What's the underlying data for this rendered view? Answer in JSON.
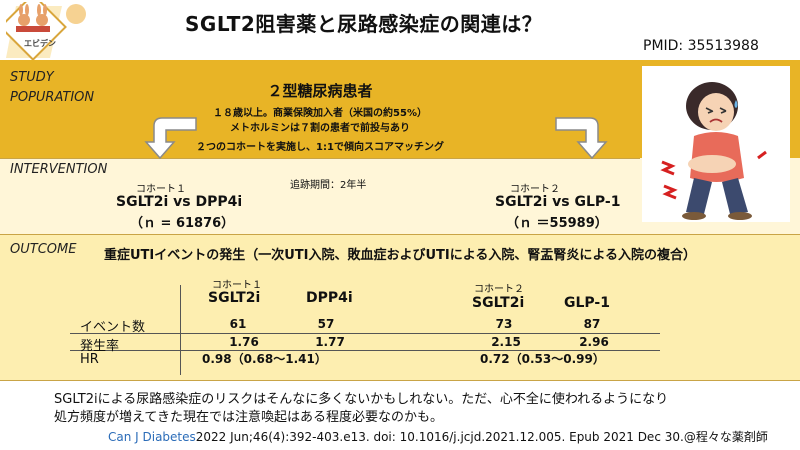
{
  "logo": {
    "text": "エビデン"
  },
  "header": {
    "title": "SGLT2阻害薬と尿路感染症の関連は？",
    "pmid": "PMID: 35513988"
  },
  "population": {
    "label_line1": "STUDY",
    "label_line2": "POPURATION",
    "title": "２型糖尿病患者",
    "line1": "１８歳以上。商業保険加入者（米国の約55%）",
    "line2": "メトホルミンは７割の患者で前投与あり",
    "line3": "２つのコホートを実施し、1:1で傾向スコアマッチング"
  },
  "intervention": {
    "label": "INTERVENTION",
    "followup": "追跡期間：2年半",
    "cohort1": {
      "label": "コホート１",
      "name": "SGLT2i vs DPP4i",
      "n": "（ｎ = 61876）"
    },
    "cohort2": {
      "label": "コホート２",
      "name": "SGLT2i vs GLP-1",
      "n": "（ｎ ＝55989）"
    }
  },
  "outcome": {
    "label": "OUTCOME",
    "title": "重症UTIイベントの発生（一次UTI入院、敗血症およびUTIによる入院、腎盂腎炎による入院の複合）",
    "cohort1_label": "コホート１",
    "cohort2_label": "コホート２",
    "headers": [
      "SGLT2i",
      "DPP4i",
      "SGLT2i",
      "GLP-1"
    ],
    "rows": [
      {
        "label": "イベント数",
        "values": [
          "61",
          "57",
          "73",
          "87"
        ]
      },
      {
        "label": "発生率",
        "values": [
          "1.76",
          "1.77",
          "2.15",
          "2.96"
        ]
      },
      {
        "label": "HR",
        "hr1": "0.98（0.68〜1.41）",
        "hr2": "0.72（0.53〜0.99）"
      }
    ]
  },
  "summary": {
    "line1": "SGLT2iによる尿路感染症のリスクはそんなに多くないかもしれない。ただ、心不全に使われるようになり",
    "line2": "処方頻度が増えてきた現在では注意喚起はある程度必要なのかも。"
  },
  "citation": {
    "journal": "Can J Diabetes",
    "details": "2022 Jun;46(4):392-403.e13. doi: 10.1016/j.jcjd.2021.12.005. Epub 2021 Dec 30.",
    "credit": "@程々な薬剤師"
  }
}
